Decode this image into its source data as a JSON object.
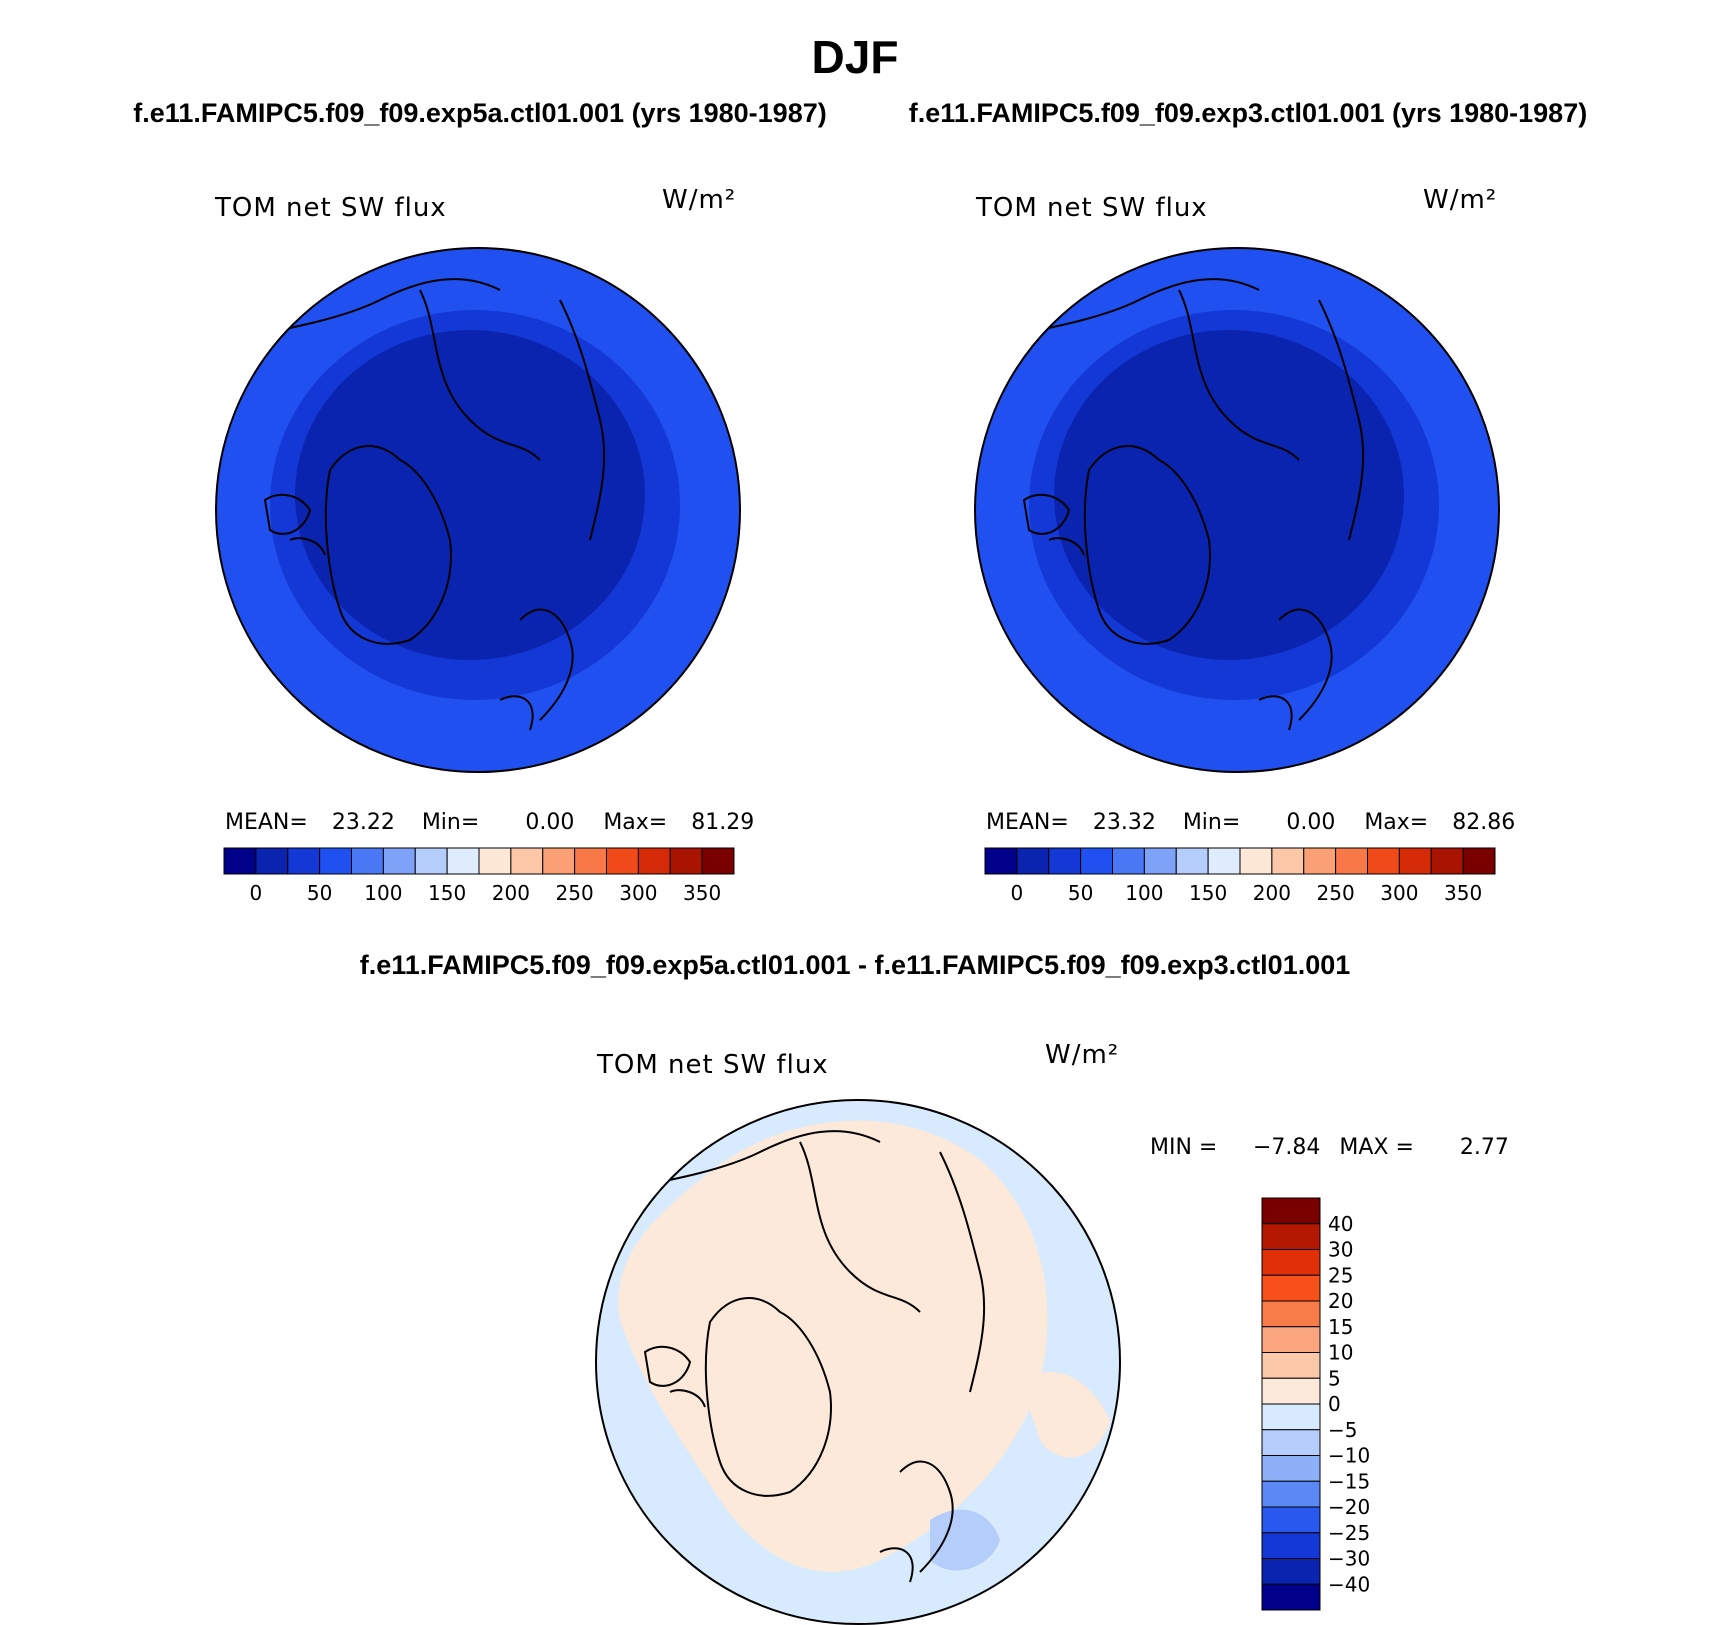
{
  "title": "DJF",
  "panels": [
    {
      "run_title": "f.e11.FAMIPC5.f09_f09.exp5a.ctl01.001 (yrs 1980-1987)",
      "variable": "TOM net SW flux",
      "units": "W/m²",
      "stats": {
        "mean_label": "MEAN=",
        "mean": "23.22",
        "min_label": "Min=",
        "min": "0.00",
        "max_label": "Max=",
        "max": "81.29"
      }
    },
    {
      "run_title": "f.e11.FAMIPC5.f09_f09.exp3.ctl01.001 (yrs 1980-1987)",
      "variable": "TOM net SW flux",
      "units": "W/m²",
      "stats": {
        "mean_label": "MEAN=",
        "mean": "23.32",
        "min_label": "Min=",
        "min": "0.00",
        "max_label": "Max=",
        "max": "82.86"
      }
    }
  ],
  "colorbar_top": {
    "colors": [
      "#00008a",
      "#0a24b0",
      "#1438d6",
      "#2050f0",
      "#4a78f5",
      "#7ea2f7",
      "#b4cdfa",
      "#deecfd",
      "#fde8d8",
      "#fcc8a8",
      "#faa074",
      "#f87848",
      "#f04a1a",
      "#d42a08",
      "#a81400",
      "#7a0000"
    ],
    "labels": [
      "0",
      "50",
      "100",
      "150",
      "200",
      "250",
      "300",
      "350"
    ]
  },
  "difference": {
    "title": "f.e11.FAMIPC5.f09_f09.exp5a.ctl01.001 - f.e11.FAMIPC5.f09_f09.exp3.ctl01.001",
    "variable": "TOM net SW flux",
    "units": "W/m²",
    "stats": {
      "min_label": "MIN =",
      "min": "−7.84",
      "max_label": "MAX =",
      "max": "2.77"
    },
    "colorbar": {
      "colors": [
        "#7a0000",
        "#b41800",
        "#e03008",
        "#f8501a",
        "#f87c48",
        "#fba67e",
        "#fcc8aa",
        "#fde9d9",
        "#d8eafd",
        "#b4cdfa",
        "#8eb0f8",
        "#5c88f5",
        "#2858ee",
        "#1438d6",
        "#0a24b0",
        "#00008a"
      ],
      "labels": [
        "40",
        "30",
        "25",
        "20",
        "15",
        "10",
        "5",
        "0",
        "−5",
        "−10",
        "−15",
        "−20",
        "−25",
        "−30",
        "−40"
      ]
    }
  }
}
